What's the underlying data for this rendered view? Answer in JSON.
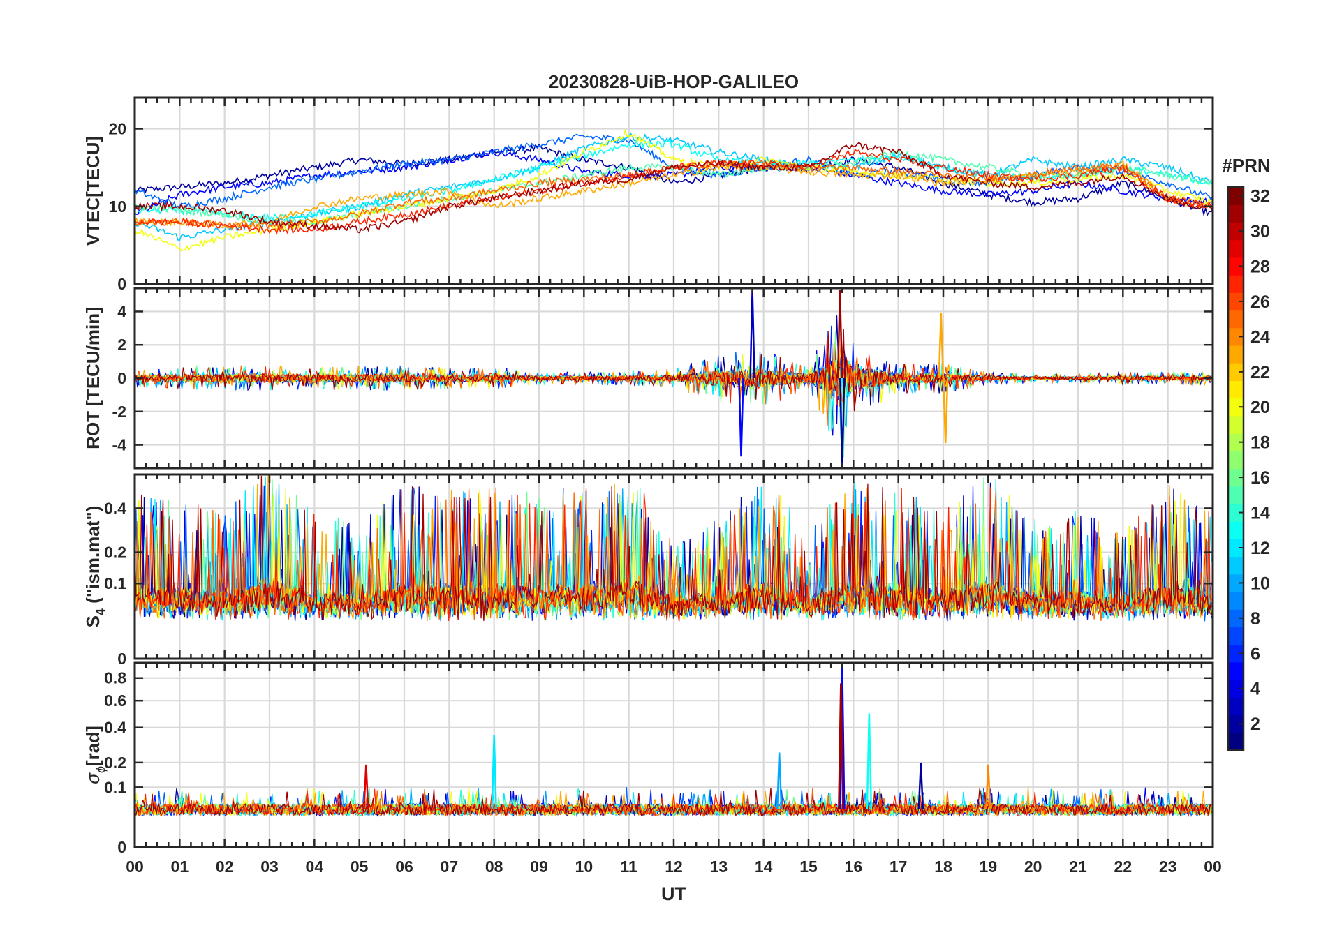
{
  "chart_data": {
    "type": "line",
    "title": "20230828-UiB-HOP-GALILEO",
    "xlabel": "UT",
    "x_tick_labels": [
      "00",
      "01",
      "02",
      "03",
      "04",
      "05",
      "06",
      "07",
      "08",
      "09",
      "10",
      "11",
      "12",
      "13",
      "14",
      "15",
      "16",
      "17",
      "18",
      "19",
      "20",
      "21",
      "22",
      "23",
      "00"
    ],
    "x_range_hours": [
      0,
      24
    ],
    "grid": true,
    "colorbar": {
      "label": "#PRN",
      "range": [
        1,
        32
      ],
      "ticks": [
        "2",
        "4",
        "6",
        "8",
        "10",
        "12",
        "14",
        "16",
        "18",
        "20",
        "22",
        "24",
        "26",
        "28",
        "30",
        "32"
      ],
      "colormap": "jet",
      "steps": 32
    },
    "panels": [
      {
        "id": "vtec",
        "ylabel": "VTEC[TECU]",
        "ylim": [
          0,
          24
        ],
        "yticks": [
          0,
          10,
          20
        ],
        "ytick_labels": [
          "0",
          "10",
          "20"
        ],
        "series": [
          {
            "prn": 2,
            "x": [
              0,
              1,
              2,
              3,
              4,
              5,
              6,
              7,
              8,
              9,
              10,
              11,
              12,
              13,
              14,
              15,
              16,
              17,
              18,
              19,
              20,
              21,
              22,
              23,
              24
            ],
            "y": [
              12,
              12.5,
              13,
              14,
              15,
              16,
              15.5,
              16,
              17,
              17.5,
              16,
              15,
              13,
              14,
              15,
              15,
              16,
              15,
              13,
              11.5,
              10.5,
              11,
              13,
              11,
              9
            ]
          },
          {
            "prn": 5,
            "x": [
              0,
              1,
              2,
              3,
              4,
              5,
              6,
              7,
              8,
              9,
              10,
              11,
              12,
              13,
              14,
              15,
              16,
              17,
              18,
              19,
              20,
              21,
              22,
              23,
              24
            ],
            "y": [
              9,
              11.5,
              12.5,
              13,
              14,
              14.5,
              15,
              16,
              17,
              16,
              14.5,
              14,
              14,
              15,
              15,
              15,
              14,
              13,
              12,
              11.5,
              12,
              13,
              12,
              11,
              10.5
            ]
          },
          {
            "prn": 8,
            "x": [
              0,
              1,
              2,
              3,
              4,
              5,
              6,
              7,
              8,
              9,
              10,
              11,
              12,
              13,
              14,
              15,
              16,
              17,
              18,
              19,
              20,
              21,
              22,
              23,
              24
            ],
            "y": [
              12,
              10,
              11,
              12.5,
              13.5,
              14.5,
              15.5,
              16,
              17,
              18,
              19,
              18.5,
              15,
              14,
              15,
              16,
              14,
              14.5,
              13.5,
              13,
              14,
              15,
              14.5,
              13,
              11
            ]
          },
          {
            "prn": 11,
            "x": [
              0,
              1,
              2,
              3,
              4,
              5,
              6,
              7,
              8,
              9,
              10,
              11,
              12,
              13,
              14,
              15,
              16,
              17,
              18,
              19,
              20,
              21,
              22,
              23,
              24
            ],
            "y": [
              8,
              6,
              7,
              8,
              9,
              10,
              11.5,
              12.5,
              13.5,
              15,
              17.5,
              19,
              18.5,
              17,
              16,
              15,
              15,
              16.5,
              15,
              14,
              16,
              15,
              16,
              15,
              13
            ]
          },
          {
            "prn": 13,
            "x": [
              0,
              1,
              2,
              3,
              4,
              5,
              6,
              7,
              8,
              9,
              10,
              11,
              12,
              13,
              14,
              15,
              16,
              17,
              18,
              19,
              20,
              21,
              22,
              23,
              24
            ],
            "y": [
              9.5,
              9.5,
              9,
              8.5,
              9,
              10,
              11,
              12,
              13.5,
              15,
              16.5,
              18,
              18,
              16,
              15.5,
              15.5,
              16,
              16.5,
              15,
              14,
              13.5,
              14,
              15,
              14,
              13
            ]
          },
          {
            "prn": 15,
            "x": [
              0,
              1,
              2,
              3,
              4,
              5,
              6,
              7,
              8,
              9,
              10,
              11,
              12,
              13,
              14,
              15,
              16,
              17,
              18,
              19,
              20,
              21,
              22,
              23,
              24
            ],
            "y": [
              10,
              9.5,
              9,
              8,
              8,
              9,
              10,
              11,
              12,
              13,
              14,
              15,
              15,
              14,
              15,
              15,
              15.5,
              17,
              16,
              15,
              14,
              14,
              15,
              14,
              13
            ]
          },
          {
            "prn": 20,
            "x": [
              0,
              1,
              2,
              3,
              4,
              5,
              6,
              7,
              8,
              9,
              10,
              11,
              12,
              13,
              14,
              15,
              16,
              17,
              18,
              19,
              20,
              21,
              22,
              23,
              24
            ],
            "y": [
              7,
              4.5,
              6,
              7,
              8,
              9,
              10,
              11,
              12,
              14,
              17,
              19.5,
              16,
              15,
              16,
              15,
              14.5,
              14,
              13.5,
              13,
              13,
              13.5,
              14,
              12,
              10.5
            ]
          },
          {
            "prn": 23,
            "x": [
              0,
              1,
              2,
              3,
              4,
              5,
              6,
              7,
              8,
              9,
              10,
              11,
              12,
              13,
              14,
              15,
              16,
              17,
              18,
              19,
              20,
              21,
              22,
              23,
              24
            ],
            "y": [
              8,
              8,
              7.5,
              8,
              10,
              11,
              11.5,
              12,
              10,
              11,
              12,
              13,
              14,
              15,
              15,
              14.5,
              14,
              14,
              13,
              13.5,
              14,
              14.5,
              15.5,
              11,
              10
            ]
          },
          {
            "prn": 25,
            "x": [
              0,
              1,
              2,
              3,
              4,
              5,
              6,
              7,
              8,
              9,
              10,
              11,
              12,
              13,
              14,
              15,
              16,
              17,
              18,
              19,
              20,
              21,
              22,
              23,
              24
            ],
            "y": [
              8,
              8,
              7.5,
              7.5,
              8,
              9,
              10.5,
              11,
              12,
              13,
              13.5,
              14,
              15,
              15.5,
              15.5,
              15,
              15,
              14.5,
              14,
              13.5,
              14,
              15,
              15,
              11,
              10
            ]
          },
          {
            "prn": 27,
            "x": [
              0,
              1,
              2,
              3,
              4,
              5,
              6,
              7,
              8,
              9,
              10,
              11,
              12,
              13,
              14,
              15,
              16,
              17,
              18,
              19,
              20,
              21,
              22,
              23,
              24
            ],
            "y": [
              8,
              8,
              7.5,
              7,
              7,
              8,
              9,
              10,
              11,
              12,
              13,
              14,
              15,
              15.5,
              15.5,
              15,
              17,
              16,
              15,
              14,
              13.5,
              14,
              15,
              11,
              10
            ]
          },
          {
            "prn": 31,
            "x": [
              0,
              1,
              2,
              3,
              4,
              5,
              6,
              7,
              8,
              9,
              10,
              11,
              12,
              13,
              14,
              15,
              16,
              17,
              18,
              19,
              20,
              21,
              22,
              23,
              24
            ],
            "y": [
              10,
              10,
              9.5,
              8,
              7.5,
              7,
              8,
              10,
              11,
              12,
              13,
              13.5,
              15,
              15.5,
              15,
              15,
              18,
              17,
              14,
              13,
              12.5,
              13,
              14,
              11,
              9.5
            ]
          }
        ]
      },
      {
        "id": "rot",
        "ylabel": "ROT [TECU/min]",
        "ylim": [
          -5.4,
          5.4
        ],
        "yticks": [
          -4,
          -2,
          0,
          2,
          4
        ],
        "ytick_labels": [
          "-4",
          "-2",
          "0",
          "2",
          "4"
        ],
        "baseline": 0,
        "activity": {
          "x": [
            0,
            1,
            2,
            3,
            4,
            5,
            6,
            7,
            8,
            9,
            10,
            11,
            12,
            13,
            14,
            15,
            15.8,
            16,
            16.5,
            17,
            18,
            19,
            20,
            21,
            22,
            23,
            24
          ],
          "amp": [
            0.6,
            0.7,
            0.8,
            0.8,
            0.7,
            0.8,
            0.8,
            0.7,
            0.7,
            0.4,
            0.4,
            0.5,
            0.6,
            1.6,
            1.8,
            0.8,
            5.2,
            2.2,
            1.8,
            1.0,
            1.0,
            0.4,
            0.3,
            0.3,
            0.4,
            0.4,
            0.5
          ]
        },
        "peaks": [
          {
            "x": 13.5,
            "y": -4.7,
            "prn": 5
          },
          {
            "x": 13.75,
            "y": 5.3,
            "prn": 3
          },
          {
            "x": 15.7,
            "y": 5.3,
            "prn": 31
          },
          {
            "x": 15.75,
            "y": -5.3,
            "prn": 2
          },
          {
            "x": 18.05,
            "y": -3.9,
            "prn": 23
          },
          {
            "x": 17.95,
            "y": 3.9,
            "prn": 23
          }
        ]
      },
      {
        "id": "s4",
        "ylabel": "S4 (\"ism.mat\")",
        "ylabel_main": "S",
        "ylabel_sub": "4",
        "ylabel_rest": " (\"ism.mat\")",
        "ylim": [
          0,
          0.6
        ],
        "yticks": [
          0,
          0.1,
          0.2,
          0.4
        ],
        "ytick_labels": [
          "0",
          "0.1",
          "0.2",
          "0.4"
        ],
        "scale": "log-like",
        "baseline": 0.04,
        "activity": {
          "x": [
            0,
            1,
            2,
            3,
            4,
            5,
            6,
            7,
            8,
            9,
            10,
            11,
            12,
            13,
            14,
            15,
            16,
            17,
            18,
            19,
            20,
            21,
            22,
            23,
            24
          ],
          "amp": [
            0.45,
            0.4,
            0.35,
            0.6,
            0.35,
            0.3,
            0.5,
            0.5,
            0.5,
            0.45,
            0.5,
            0.6,
            0.2,
            0.3,
            0.55,
            0.25,
            0.55,
            0.5,
            0.35,
            0.6,
            0.3,
            0.35,
            0.25,
            0.5,
            0.35
          ]
        }
      },
      {
        "id": "sigma_phi",
        "ylabel": "σϕ[rad]",
        "ylabel_main": "σ",
        "ylabel_sub": "ϕ",
        "ylabel_rest": "[rad]",
        "ylim": [
          0,
          0.95
        ],
        "yticks": [
          0,
          0.1,
          0.2,
          0.4,
          0.6,
          0.8
        ],
        "ytick_labels": [
          "0",
          "0.1",
          "0.2",
          "0.4",
          "0.6",
          "0.8"
        ],
        "scale": "log-like",
        "baseline": 0.04,
        "peaks": [
          {
            "x": 15.75,
            "y": 0.95,
            "prn": 5
          },
          {
            "x": 15.72,
            "y": 0.75,
            "prn": 31
          },
          {
            "x": 16.35,
            "y": 0.5,
            "prn": 13
          },
          {
            "x": 8.0,
            "y": 0.35,
            "prn": 12
          },
          {
            "x": 14.35,
            "y": 0.25,
            "prn": 10
          },
          {
            "x": 17.5,
            "y": 0.2,
            "prn": 2
          },
          {
            "x": 19.0,
            "y": 0.19,
            "prn": 24
          },
          {
            "x": 5.15,
            "y": 0.19,
            "prn": 29
          }
        ]
      }
    ]
  }
}
